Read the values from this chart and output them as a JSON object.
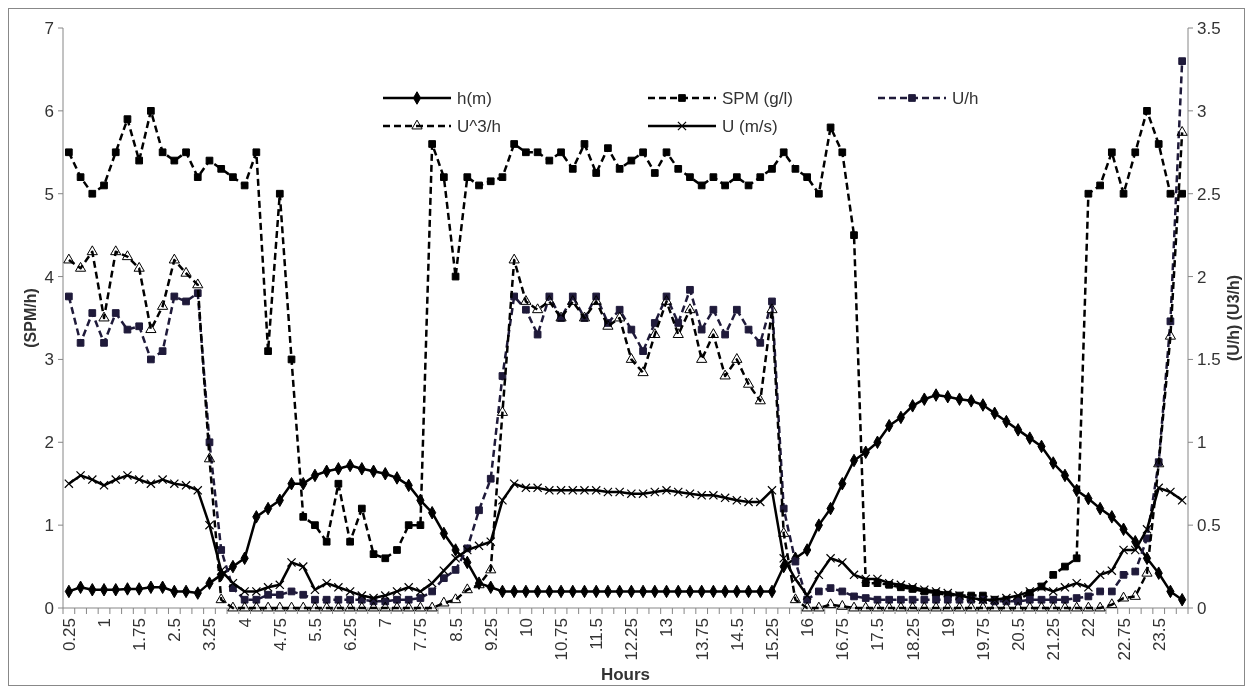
{
  "chart_data": {
    "type": "line",
    "xlabel": "Hours",
    "ylabel": "(SPM/h)",
    "y2label": "(U/h) (U3/h)",
    "categories": [
      "0.25",
      null,
      null,
      "1",
      null,
      null,
      "1.75",
      null,
      null,
      "2.5",
      null,
      null,
      "3.25",
      null,
      null,
      "4",
      null,
      null,
      "4.75",
      null,
      null,
      "5.5",
      null,
      null,
      "6.25",
      null,
      null,
      "7",
      null,
      null,
      "7.75",
      null,
      null,
      "8.5",
      null,
      null,
      "9.25",
      null,
      null,
      "10",
      null,
      null,
      "10.75",
      null,
      null,
      "11.5",
      null,
      null,
      "12.25",
      null,
      null,
      "13",
      null,
      null,
      "13.75",
      null,
      null,
      "14.5",
      null,
      null,
      "15.25",
      null,
      null,
      "16",
      null,
      null,
      "16.75",
      null,
      null,
      "17.5",
      null,
      null,
      "18.25",
      null,
      null,
      "19",
      null,
      null,
      "19.75",
      null,
      null,
      "20.5",
      null,
      null,
      "21.25",
      null,
      null,
      "22",
      null,
      null,
      "22.75",
      null,
      null,
      "23.5",
      null,
      null
    ],
    "ylim": [
      0,
      7
    ],
    "yticks": [
      0,
      1,
      2,
      3,
      4,
      5,
      6,
      7
    ],
    "y2lim": [
      0,
      3.5
    ],
    "y2ticks": [
      0,
      0.5,
      1,
      1.5,
      2,
      2.5,
      3,
      3.5
    ],
    "grid": false,
    "legend": "top",
    "series": [
      {
        "name": "h(m)",
        "color": "#000000",
        "marker": "diamond",
        "line_style": "solid",
        "values": [
          0.2,
          0.25,
          0.22,
          0.22,
          0.22,
          0.23,
          0.23,
          0.25,
          0.25,
          0.2,
          0.2,
          0.18,
          0.3,
          0.4,
          0.5,
          0.6,
          1.1,
          1.2,
          1.3,
          1.5,
          1.5,
          1.6,
          1.65,
          1.68,
          1.72,
          1.68,
          1.65,
          1.62,
          1.57,
          1.48,
          1.3,
          1.15,
          0.9,
          0.7,
          0.55,
          0.3,
          0.25,
          0.2,
          0.2,
          0.2,
          0.2,
          0.2,
          0.2,
          0.2,
          0.2,
          0.2,
          0.2,
          0.2,
          0.2,
          0.2,
          0.2,
          0.2,
          0.2,
          0.2,
          0.2,
          0.2,
          0.2,
          0.2,
          0.2,
          0.2,
          0.2,
          0.5,
          0.6,
          0.7,
          1.0,
          1.2,
          1.5,
          1.78,
          1.88,
          2.0,
          2.2,
          2.3,
          2.44,
          2.52,
          2.57,
          2.55,
          2.52,
          2.5,
          2.45,
          2.35,
          2.25,
          2.15,
          2.05,
          1.95,
          1.75,
          1.6,
          1.42,
          1.32,
          1.2,
          1.1,
          0.95,
          0.8,
          0.6,
          0.42,
          0.2,
          0.1
        ]
      },
      {
        "name": "SPM (g/l)",
        "color": "#000000",
        "marker": "square",
        "line_style": "dashed",
        "values": [
          5.5,
          5.2,
          5.0,
          5.1,
          5.5,
          5.9,
          5.4,
          6.0,
          5.5,
          5.4,
          5.5,
          5.2,
          5.4,
          5.3,
          5.2,
          5.1,
          5.5,
          3.1,
          5.0,
          3.0,
          1.1,
          1.0,
          0.8,
          1.5,
          0.8,
          1.2,
          0.65,
          0.6,
          0.7,
          1.0,
          1.0,
          5.6,
          5.2,
          4.0,
          5.2,
          5.1,
          5.15,
          5.2,
          5.6,
          5.5,
          5.5,
          5.4,
          5.5,
          5.3,
          5.6,
          5.25,
          5.55,
          5.3,
          5.4,
          5.5,
          5.25,
          5.5,
          5.3,
          5.2,
          5.1,
          5.2,
          5.1,
          5.2,
          5.1,
          5.2,
          5.3,
          5.5,
          5.3,
          5.2,
          5.0,
          5.8,
          5.5,
          4.5,
          0.3,
          0.3,
          0.28,
          0.25,
          0.23,
          0.2,
          0.18,
          0.16,
          0.15,
          0.15,
          0.15,
          0.1,
          0.1,
          0.1,
          0.18,
          0.26,
          0.4,
          0.5,
          0.6,
          5.0,
          5.1,
          5.5,
          5.0,
          5.5,
          6.0,
          5.6,
          5.0,
          5.0
        ]
      },
      {
        "name": "U/h",
        "color": "#1f1a3a",
        "marker": "square",
        "line_style": "dashed",
        "axis": "y2",
        "values": [
          1.88,
          1.6,
          1.78,
          1.6,
          1.78,
          1.68,
          1.7,
          1.5,
          1.55,
          1.88,
          1.85,
          1.9,
          1.0,
          0.35,
          0.12,
          0.05,
          0.05,
          0.08,
          0.08,
          0.1,
          0.08,
          0.05,
          0.05,
          0.05,
          0.05,
          0.05,
          0.04,
          0.04,
          0.05,
          0.05,
          0.06,
          0.1,
          0.18,
          0.23,
          0.36,
          0.59,
          0.78,
          1.4,
          1.88,
          1.8,
          1.65,
          1.88,
          1.75,
          1.88,
          1.75,
          1.88,
          1.72,
          1.8,
          1.68,
          1.55,
          1.72,
          1.88,
          1.72,
          1.92,
          1.68,
          1.8,
          1.65,
          1.8,
          1.68,
          1.6,
          1.85,
          0.6,
          0.28,
          0.05,
          0.1,
          0.12,
          0.1,
          0.07,
          0.06,
          0.05,
          0.05,
          0.05,
          0.05,
          0.05,
          0.05,
          0.05,
          0.05,
          0.05,
          0.05,
          0.04,
          0.04,
          0.04,
          0.05,
          0.05,
          0.05,
          0.05,
          0.06,
          0.07,
          0.1,
          0.1,
          0.2,
          0.22,
          0.42,
          0.88,
          1.73,
          3.3
        ]
      },
      {
        "name": "U^3/h",
        "color": "#000000",
        "marker": "triangle",
        "line_style": "dashed",
        "axis": "y2",
        "values": [
          2.1,
          2.05,
          2.15,
          1.75,
          2.15,
          2.12,
          2.05,
          1.68,
          1.82,
          2.1,
          2.02,
          1.95,
          0.9,
          0.05,
          0,
          0,
          0,
          0,
          0,
          0,
          0,
          0,
          0,
          0,
          0,
          0,
          0,
          0,
          0,
          0,
          0,
          0,
          0.03,
          0.05,
          0.11,
          0.14,
          0.23,
          1.18,
          2.1,
          1.85,
          1.8,
          1.85,
          1.75,
          1.85,
          1.75,
          1.85,
          1.7,
          1.75,
          1.5,
          1.42,
          1.65,
          1.85,
          1.65,
          1.8,
          1.5,
          1.65,
          1.4,
          1.5,
          1.35,
          1.25,
          1.8,
          0.45,
          0.05,
          0,
          0,
          0.02,
          0.01,
          0,
          0,
          0,
          0,
          0,
          0,
          0,
          0,
          0,
          0,
          0,
          0,
          0,
          0,
          0,
          0,
          0,
          0,
          0,
          0,
          0,
          0,
          0.02,
          0.06,
          0.07,
          0.21,
          0.87,
          1.64,
          2.87
        ]
      },
      {
        "name": "U (m/s)",
        "color": "#000000",
        "marker": "cross",
        "line_style": "solid",
        "values": [
          1.5,
          1.6,
          1.55,
          1.48,
          1.55,
          1.6,
          1.55,
          1.5,
          1.55,
          1.5,
          1.48,
          1.42,
          1.0,
          0.45,
          0.3,
          0.2,
          0.2,
          0.25,
          0.28,
          0.55,
          0.5,
          0.22,
          0.3,
          0.25,
          0.2,
          0.15,
          0.12,
          0.15,
          0.2,
          0.25,
          0.2,
          0.3,
          0.45,
          0.6,
          0.7,
          0.75,
          0.8,
          1.3,
          1.5,
          1.45,
          1.45,
          1.42,
          1.42,
          1.42,
          1.42,
          1.42,
          1.4,
          1.4,
          1.38,
          1.38,
          1.4,
          1.42,
          1.4,
          1.38,
          1.36,
          1.36,
          1.33,
          1.3,
          1.28,
          1.28,
          1.42,
          0.6,
          0.35,
          0.15,
          0.4,
          0.6,
          0.55,
          0.4,
          0.35,
          0.35,
          0.3,
          0.28,
          0.25,
          0.22,
          0.2,
          0.18,
          0.15,
          0.12,
          0.1,
          0.1,
          0.12,
          0.15,
          0.2,
          0.25,
          0.2,
          0.25,
          0.3,
          0.25,
          0.4,
          0.45,
          0.7,
          0.7,
          0.95,
          1.45,
          1.4,
          1.3
        ]
      }
    ]
  }
}
